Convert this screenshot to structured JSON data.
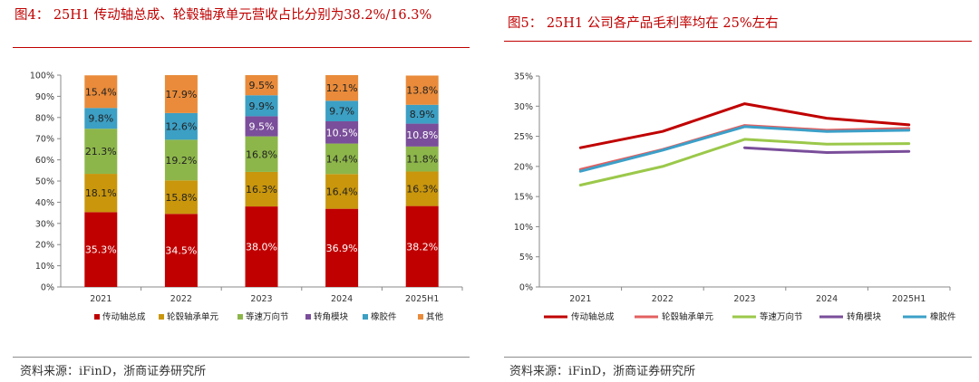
{
  "left": {
    "title": "图4：  25H1 传动轴总成、轮毂轴承单元营收占比分别为38.2%/16.3%",
    "source": "资料来源：iFinD，浙商证券研究所"
  },
  "right": {
    "title": "图5：  25H1 公司各产品毛利率均在 25%左右",
    "source": "资料来源：iFinD，浙商证券研究所"
  },
  "chart_data": [
    {
      "type": "bar",
      "stacked": true,
      "title": "25H1 传动轴总成、轮毂轴承单元营收占比分别为38.2%/16.3%",
      "categories": [
        "2021",
        "2022",
        "2023",
        "2024",
        "2025H1"
      ],
      "ylim": [
        0,
        100
      ],
      "yticks": [
        "0%",
        "10%",
        "20%",
        "30%",
        "40%",
        "50%",
        "60%",
        "70%",
        "80%",
        "90%",
        "100%"
      ],
      "series": [
        {
          "name": "传动轴总成",
          "color": "#c00000",
          "label_color": "#ffffff",
          "values": [
            35.3,
            34.5,
            38.0,
            36.9,
            38.2
          ],
          "labels": [
            "35.3%",
            "34.5%",
            "38.0%",
            "36.9%",
            "38.2%"
          ]
        },
        {
          "name": "轮毂轴承单元",
          "color": "#c9960c",
          "label_color": "#222222",
          "values": [
            18.1,
            15.8,
            16.3,
            16.4,
            16.3
          ],
          "labels": [
            "18.1%",
            "15.8%",
            "16.3%",
            "16.4%",
            "16.3%"
          ]
        },
        {
          "name": "等速万向节",
          "color": "#8db64a",
          "label_color": "#222222",
          "values": [
            21.3,
            19.2,
            16.8,
            14.4,
            11.8
          ],
          "labels": [
            "21.3%",
            "19.2%",
            "16.8%",
            "14.4%",
            "11.8%"
          ]
        },
        {
          "name": "转角模块",
          "color": "#7a4e9a",
          "label_color": "#ffffff",
          "values": [
            0,
            0,
            9.5,
            10.5,
            10.8
          ],
          "labels": [
            "",
            "",
            "9.5%",
            "10.5%",
            "10.8%"
          ]
        },
        {
          "name": "橡胶件",
          "color": "#3c9fc4",
          "label_color": "#222222",
          "values": [
            9.8,
            12.6,
            9.9,
            9.7,
            8.9
          ],
          "labels": [
            "9.8%",
            "12.6%",
            "9.9%",
            "9.7%",
            "8.9%"
          ]
        },
        {
          "name": "其他",
          "color": "#e98b3a",
          "label_color": "#222222",
          "values": [
            15.4,
            17.9,
            9.5,
            12.1,
            13.8
          ],
          "labels": [
            "15.4%",
            "17.9%",
            "9.5%",
            "12.1%",
            "13.8%"
          ]
        }
      ],
      "legend_position": "bottom"
    },
    {
      "type": "line",
      "title": "25H1 公司各产品毛利率均在 25%左右",
      "x": [
        "2021",
        "2022",
        "2023",
        "2024",
        "2025H1"
      ],
      "ylim": [
        0,
        35
      ],
      "yticks": [
        "0%",
        "5%",
        "10%",
        "15%",
        "20%",
        "25%",
        "30%",
        "35%"
      ],
      "series": [
        {
          "name": "传动轴总成",
          "color": "#c00000",
          "values": [
            23.1,
            25.8,
            30.4,
            28.0,
            26.9
          ]
        },
        {
          "name": "轮毂轴承单元",
          "color": "#e36060",
          "values": [
            19.5,
            22.8,
            26.8,
            26.0,
            26.3
          ]
        },
        {
          "name": "等速万向节",
          "color": "#9bc84a",
          "values": [
            16.9,
            20.0,
            24.5,
            23.7,
            23.8
          ]
        },
        {
          "name": "转角模块",
          "color": "#7a4e9a",
          "values": [
            null,
            null,
            23.1,
            22.3,
            22.5
          ]
        },
        {
          "name": "橡胶件",
          "color": "#3ca0c8",
          "values": [
            19.2,
            22.7,
            26.6,
            25.8,
            26.0
          ]
        }
      ],
      "legend_position": "bottom"
    }
  ]
}
